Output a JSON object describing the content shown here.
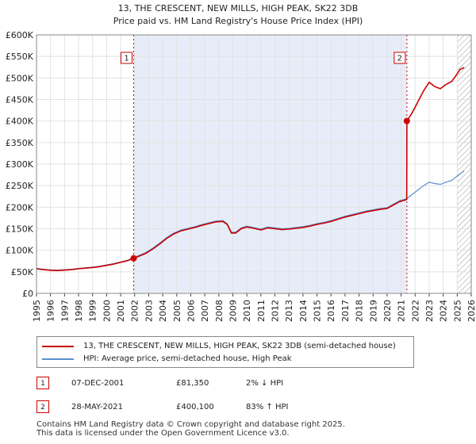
{
  "chart_data": {
    "type": "line",
    "title": "13, THE CRESCENT, NEW MILLS, HIGH PEAK, SK22 3DB",
    "subtitle": "Price paid vs. HM Land Registry's House Price Index (HPI)",
    "xlim": [
      1995,
      2026
    ],
    "ylim": [
      0,
      600000
    ],
    "x_ticks": [
      "1995",
      "1996",
      "1997",
      "1998",
      "1999",
      "2000",
      "2001",
      "2002",
      "2003",
      "2004",
      "2005",
      "2006",
      "2007",
      "2008",
      "2009",
      "2010",
      "2011",
      "2012",
      "2013",
      "2014",
      "2015",
      "2016",
      "2017",
      "2018",
      "2019",
      "2020",
      "2021",
      "2022",
      "2023",
      "2024",
      "2025",
      "2026"
    ],
    "y_ticks": [
      {
        "v": 0,
        "label": "£0"
      },
      {
        "v": 50000,
        "label": "£50K"
      },
      {
        "v": 100000,
        "label": "£100K"
      },
      {
        "v": 150000,
        "label": "£150K"
      },
      {
        "v": 200000,
        "label": "£200K"
      },
      {
        "v": 250000,
        "label": "£250K"
      },
      {
        "v": 300000,
        "label": "£300K"
      },
      {
        "v": 350000,
        "label": "£350K"
      },
      {
        "v": 400000,
        "label": "£400K"
      },
      {
        "v": 450000,
        "label": "£450K"
      },
      {
        "v": 500000,
        "label": "£500K"
      },
      {
        "v": 550000,
        "label": "£550K"
      },
      {
        "v": 600000,
        "label": "£600K"
      }
    ],
    "grid": true,
    "shaded_range": [
      2001.93,
      2021.41
    ],
    "future_from": 2025.0,
    "series": [
      {
        "name": "13, THE CRESCENT, NEW MILLS, HIGH PEAK, SK22 3DB (semi-detached house)",
        "color": "#cc0000",
        "points": [
          [
            1995.0,
            57000
          ],
          [
            1995.5,
            55000
          ],
          [
            1996.0,
            53500
          ],
          [
            1996.5,
            53000
          ],
          [
            1997.0,
            54000
          ],
          [
            1997.5,
            55000
          ],
          [
            1998.0,
            57000
          ],
          [
            1998.5,
            58500
          ],
          [
            1999.0,
            60000
          ],
          [
            1999.5,
            62000
          ],
          [
            2000.0,
            65000
          ],
          [
            2000.5,
            68000
          ],
          [
            2001.0,
            72000
          ],
          [
            2001.5,
            76000
          ],
          [
            2001.93,
            81350
          ],
          [
            2002.3,
            86000
          ],
          [
            2002.8,
            93000
          ],
          [
            2003.3,
            103000
          ],
          [
            2003.8,
            115000
          ],
          [
            2004.3,
            128000
          ],
          [
            2004.8,
            138000
          ],
          [
            2005.3,
            145000
          ],
          [
            2005.8,
            149000
          ],
          [
            2006.3,
            153000
          ],
          [
            2006.8,
            158000
          ],
          [
            2007.3,
            162000
          ],
          [
            2007.8,
            166000
          ],
          [
            2008.3,
            167000
          ],
          [
            2008.6,
            160000
          ],
          [
            2008.9,
            140000
          ],
          [
            2009.2,
            140000
          ],
          [
            2009.6,
            150000
          ],
          [
            2010.0,
            154000
          ],
          [
            2010.5,
            151000
          ],
          [
            2011.0,
            147000
          ],
          [
            2011.5,
            152000
          ],
          [
            2012.0,
            150000
          ],
          [
            2012.5,
            148000
          ],
          [
            2013.0,
            149000
          ],
          [
            2013.5,
            151000
          ],
          [
            2014.0,
            153000
          ],
          [
            2014.5,
            156000
          ],
          [
            2015.0,
            160000
          ],
          [
            2015.5,
            163000
          ],
          [
            2016.0,
            167000
          ],
          [
            2016.5,
            172000
          ],
          [
            2017.0,
            177000
          ],
          [
            2017.5,
            181000
          ],
          [
            2018.0,
            185000
          ],
          [
            2018.5,
            189000
          ],
          [
            2019.0,
            192000
          ],
          [
            2019.5,
            195000
          ],
          [
            2020.0,
            197000
          ],
          [
            2020.5,
            206000
          ],
          [
            2020.9,
            213000
          ],
          [
            2021.4,
            218000
          ],
          [
            2021.41,
            400100
          ],
          [
            2021.8,
            420000
          ],
          [
            2022.2,
            445000
          ],
          [
            2022.6,
            470000
          ],
          [
            2023.0,
            490000
          ],
          [
            2023.4,
            480000
          ],
          [
            2023.8,
            475000
          ],
          [
            2024.2,
            485000
          ],
          [
            2024.6,
            492000
          ],
          [
            2024.9,
            505000
          ],
          [
            2025.2,
            520000
          ],
          [
            2025.5,
            524000
          ]
        ]
      },
      {
        "name": "HPI: Average price, semi-detached house, High Peak",
        "color": "#5b8fd0",
        "points": [
          [
            1995.0,
            58000
          ],
          [
            1995.5,
            56000
          ],
          [
            1996.0,
            54500
          ],
          [
            1996.5,
            54000
          ],
          [
            1997.0,
            55000
          ],
          [
            1997.5,
            56000
          ],
          [
            1998.0,
            58000
          ],
          [
            1998.5,
            59500
          ],
          [
            1999.0,
            61000
          ],
          [
            1999.5,
            63000
          ],
          [
            2000.0,
            66000
          ],
          [
            2000.5,
            69000
          ],
          [
            2001.0,
            73000
          ],
          [
            2001.5,
            77000
          ],
          [
            2001.93,
            83000
          ],
          [
            2002.3,
            88000
          ],
          [
            2002.8,
            95000
          ],
          [
            2003.3,
            105000
          ],
          [
            2003.8,
            117000
          ],
          [
            2004.3,
            130000
          ],
          [
            2004.8,
            140000
          ],
          [
            2005.3,
            147000
          ],
          [
            2005.8,
            151000
          ],
          [
            2006.3,
            155000
          ],
          [
            2006.8,
            160000
          ],
          [
            2007.3,
            164000
          ],
          [
            2007.8,
            168000
          ],
          [
            2008.3,
            169000
          ],
          [
            2008.6,
            162000
          ],
          [
            2008.9,
            142000
          ],
          [
            2009.2,
            142000
          ],
          [
            2009.6,
            152000
          ],
          [
            2010.0,
            156000
          ],
          [
            2010.5,
            153000
          ],
          [
            2011.0,
            149000
          ],
          [
            2011.5,
            154000
          ],
          [
            2012.0,
            152000
          ],
          [
            2012.5,
            150000
          ],
          [
            2013.0,
            151000
          ],
          [
            2013.5,
            153000
          ],
          [
            2014.0,
            155000
          ],
          [
            2014.5,
            158000
          ],
          [
            2015.0,
            162000
          ],
          [
            2015.5,
            165000
          ],
          [
            2016.0,
            169000
          ],
          [
            2016.5,
            174000
          ],
          [
            2017.0,
            179000
          ],
          [
            2017.5,
            183000
          ],
          [
            2018.0,
            187000
          ],
          [
            2018.5,
            191000
          ],
          [
            2019.0,
            194000
          ],
          [
            2019.5,
            197000
          ],
          [
            2020.0,
            199000
          ],
          [
            2020.5,
            208000
          ],
          [
            2020.9,
            215000
          ],
          [
            2021.41,
            220000
          ],
          [
            2021.8,
            230000
          ],
          [
            2022.2,
            240000
          ],
          [
            2022.6,
            250000
          ],
          [
            2023.0,
            258000
          ],
          [
            2023.4,
            255000
          ],
          [
            2023.8,
            253000
          ],
          [
            2024.2,
            258000
          ],
          [
            2024.6,
            262000
          ],
          [
            2024.9,
            270000
          ],
          [
            2025.2,
            278000
          ],
          [
            2025.5,
            284000
          ]
        ]
      }
    ],
    "markers": [
      {
        "label": "1",
        "x": 2001.93,
        "y": 81350
      },
      {
        "label": "2",
        "x": 2021.41,
        "y": 400100
      }
    ]
  },
  "legend": {
    "property_label": "13, THE CRESCENT, NEW MILLS, HIGH PEAK, SK22 3DB (semi-detached house)",
    "hpi_label": "HPI: Average price, semi-detached house, High Peak"
  },
  "transactions": [
    {
      "badge": "1",
      "date": "07-DEC-2001",
      "price": "£81,350",
      "hpi": "2% ↓ HPI"
    },
    {
      "badge": "2",
      "date": "28-MAY-2021",
      "price": "£400,100",
      "hpi": "83% ↑ HPI"
    }
  ],
  "footer": {
    "line1": "Contains HM Land Registry data © Crown copyright and database right 2025.",
    "line2": "This data is licensed under the Open Government Licence v3.0."
  },
  "colors": {
    "property": "#cc0000",
    "hpi": "#5b8fd0",
    "shade": "#dde6f5",
    "marker_line": "#cc0000"
  }
}
